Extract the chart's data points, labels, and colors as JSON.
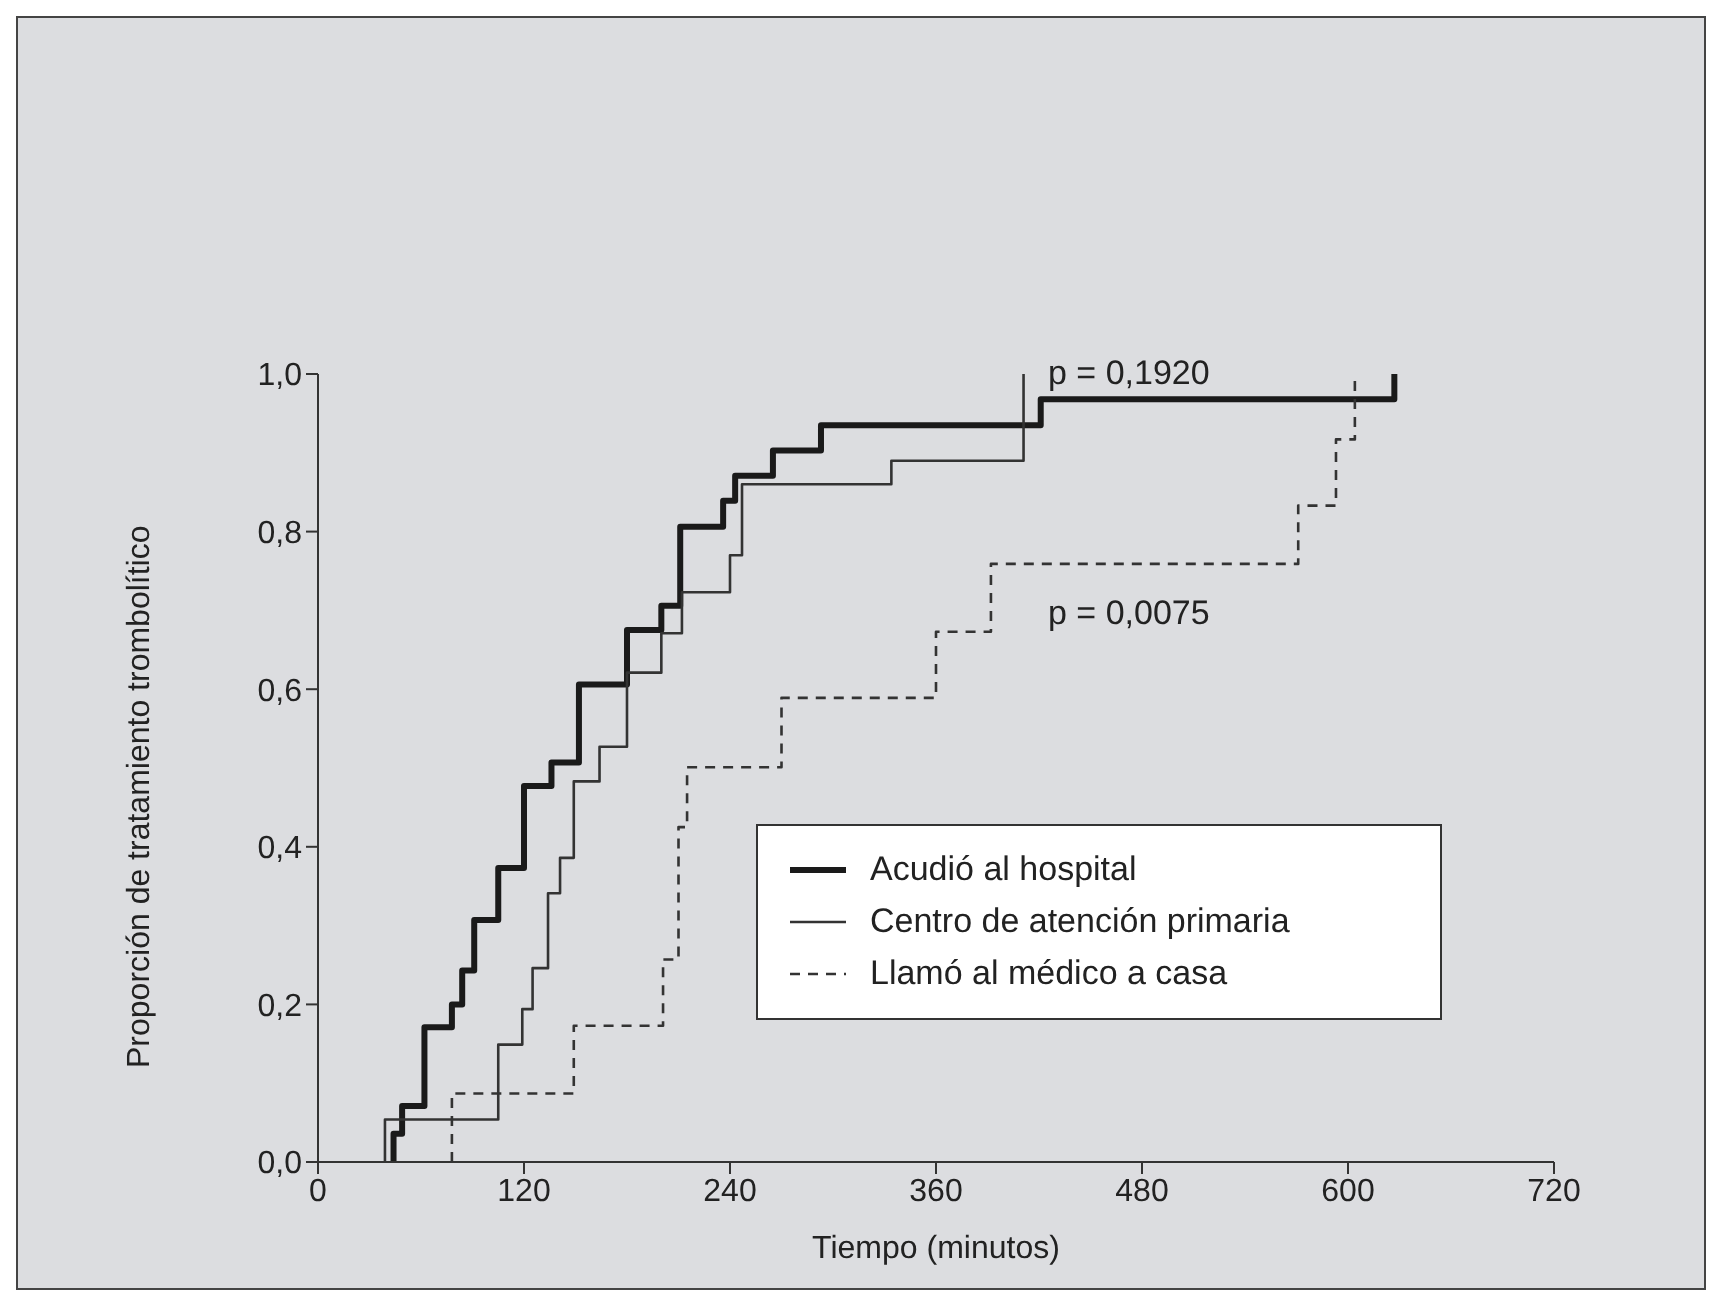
{
  "chart_data": {
    "type": "step",
    "xlabel": "Tiempo (minutos)",
    "ylabel": "Proporción de tratamiento trombolítico",
    "xlim": [
      0,
      720
    ],
    "xticks": [
      0,
      120,
      240,
      360,
      480,
      600,
      720
    ],
    "ylim": [
      0,
      1
    ],
    "yticks": [
      {
        "value": 0,
        "label": "0,0"
      },
      {
        "value": 0.2,
        "label": "0,2"
      },
      {
        "value": 0.4,
        "label": "0,4"
      },
      {
        "value": 0.6,
        "label": "0,6"
      },
      {
        "value": 0.8,
        "label": "0,8"
      },
      {
        "value": 1,
        "label": "1,0"
      }
    ],
    "legend": "bottom right",
    "annotations": [
      "p = 0,1920",
      "p = 0,0075"
    ],
    "series": [
      {
        "name": "Acudió al hospital",
        "color": "#1a1a1a",
        "line_style": "solid",
        "x": [
          44,
          44,
          49,
          62,
          78,
          84,
          91,
          105,
          120,
          136,
          152,
          180,
          200,
          211,
          236,
          243,
          265,
          293,
          421,
          627
        ],
        "values": [
          0,
          0.036,
          0.071,
          0.171,
          0.2,
          0.243,
          0.307,
          0.373,
          0.477,
          0.507,
          0.606,
          0.675,
          0.706,
          0.806,
          0.839,
          0.871,
          0.903,
          0.935,
          0.968,
          1.0
        ]
      },
      {
        "name": "Centro de atención primaria",
        "color": "#333333",
        "line_style": "solid",
        "x": [
          39,
          39,
          105,
          119,
          125,
          134,
          141,
          149,
          164,
          180,
          200,
          212,
          240,
          247,
          334,
          411
        ],
        "values": [
          0,
          0.054,
          0.149,
          0.194,
          0.246,
          0.341,
          0.386,
          0.483,
          0.527,
          0.621,
          0.671,
          0.723,
          0.77,
          0.86,
          0.89,
          1.0
        ]
      },
      {
        "name": "Llamó al médico a casa",
        "color": "#333333",
        "line_style": "dashed",
        "x": [
          78,
          78,
          149,
          201,
          210,
          215,
          270,
          360,
          392,
          571,
          593,
          604
        ],
        "values": [
          0,
          0.087,
          0.173,
          0.257,
          0.425,
          0.501,
          0.589,
          0.673,
          0.759,
          0.833,
          0.917,
          1.0
        ]
      }
    ]
  }
}
